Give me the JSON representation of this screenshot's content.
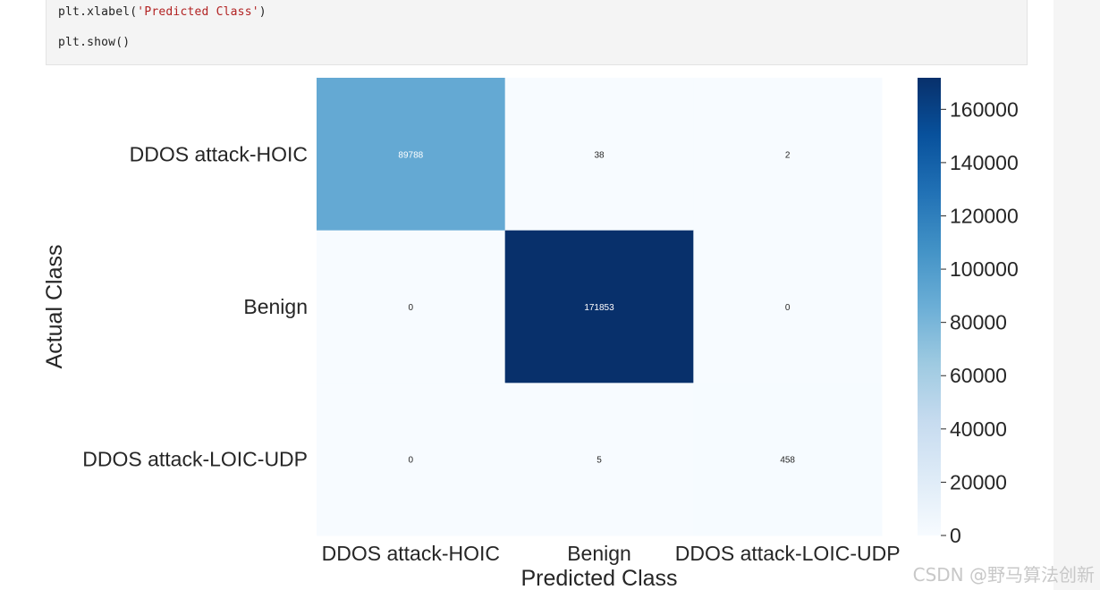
{
  "code": {
    "lines": [
      {
        "prefix": "plt.xlabel(",
        "string": "'Predicted Class'",
        "suffix": ")"
      },
      {
        "prefix": "plt.show()",
        "string": "",
        "suffix": ""
      }
    ]
  },
  "chart_data": {
    "type": "heatmap",
    "xlabel": "Predicted Class",
    "ylabel": "Actual Class",
    "x_categories": [
      "DDOS attack-HOIC",
      "Benign",
      "DDOS attack-LOIC-UDP"
    ],
    "y_categories": [
      "DDOS attack-HOIC",
      "Benign",
      "DDOS attack-LOIC-UDP"
    ],
    "values": [
      [
        89788,
        38,
        2
      ],
      [
        0,
        171853,
        0
      ],
      [
        0,
        5,
        458
      ]
    ],
    "colormap": "Blues",
    "colorbar": {
      "range": [
        0,
        171853
      ],
      "ticks": [
        0,
        20000,
        40000,
        60000,
        80000,
        100000,
        120000,
        140000,
        160000
      ]
    },
    "colors": {
      "low": "#f7fbff",
      "high": "#08306b"
    }
  },
  "watermark": "CSDN @野马算法创新"
}
